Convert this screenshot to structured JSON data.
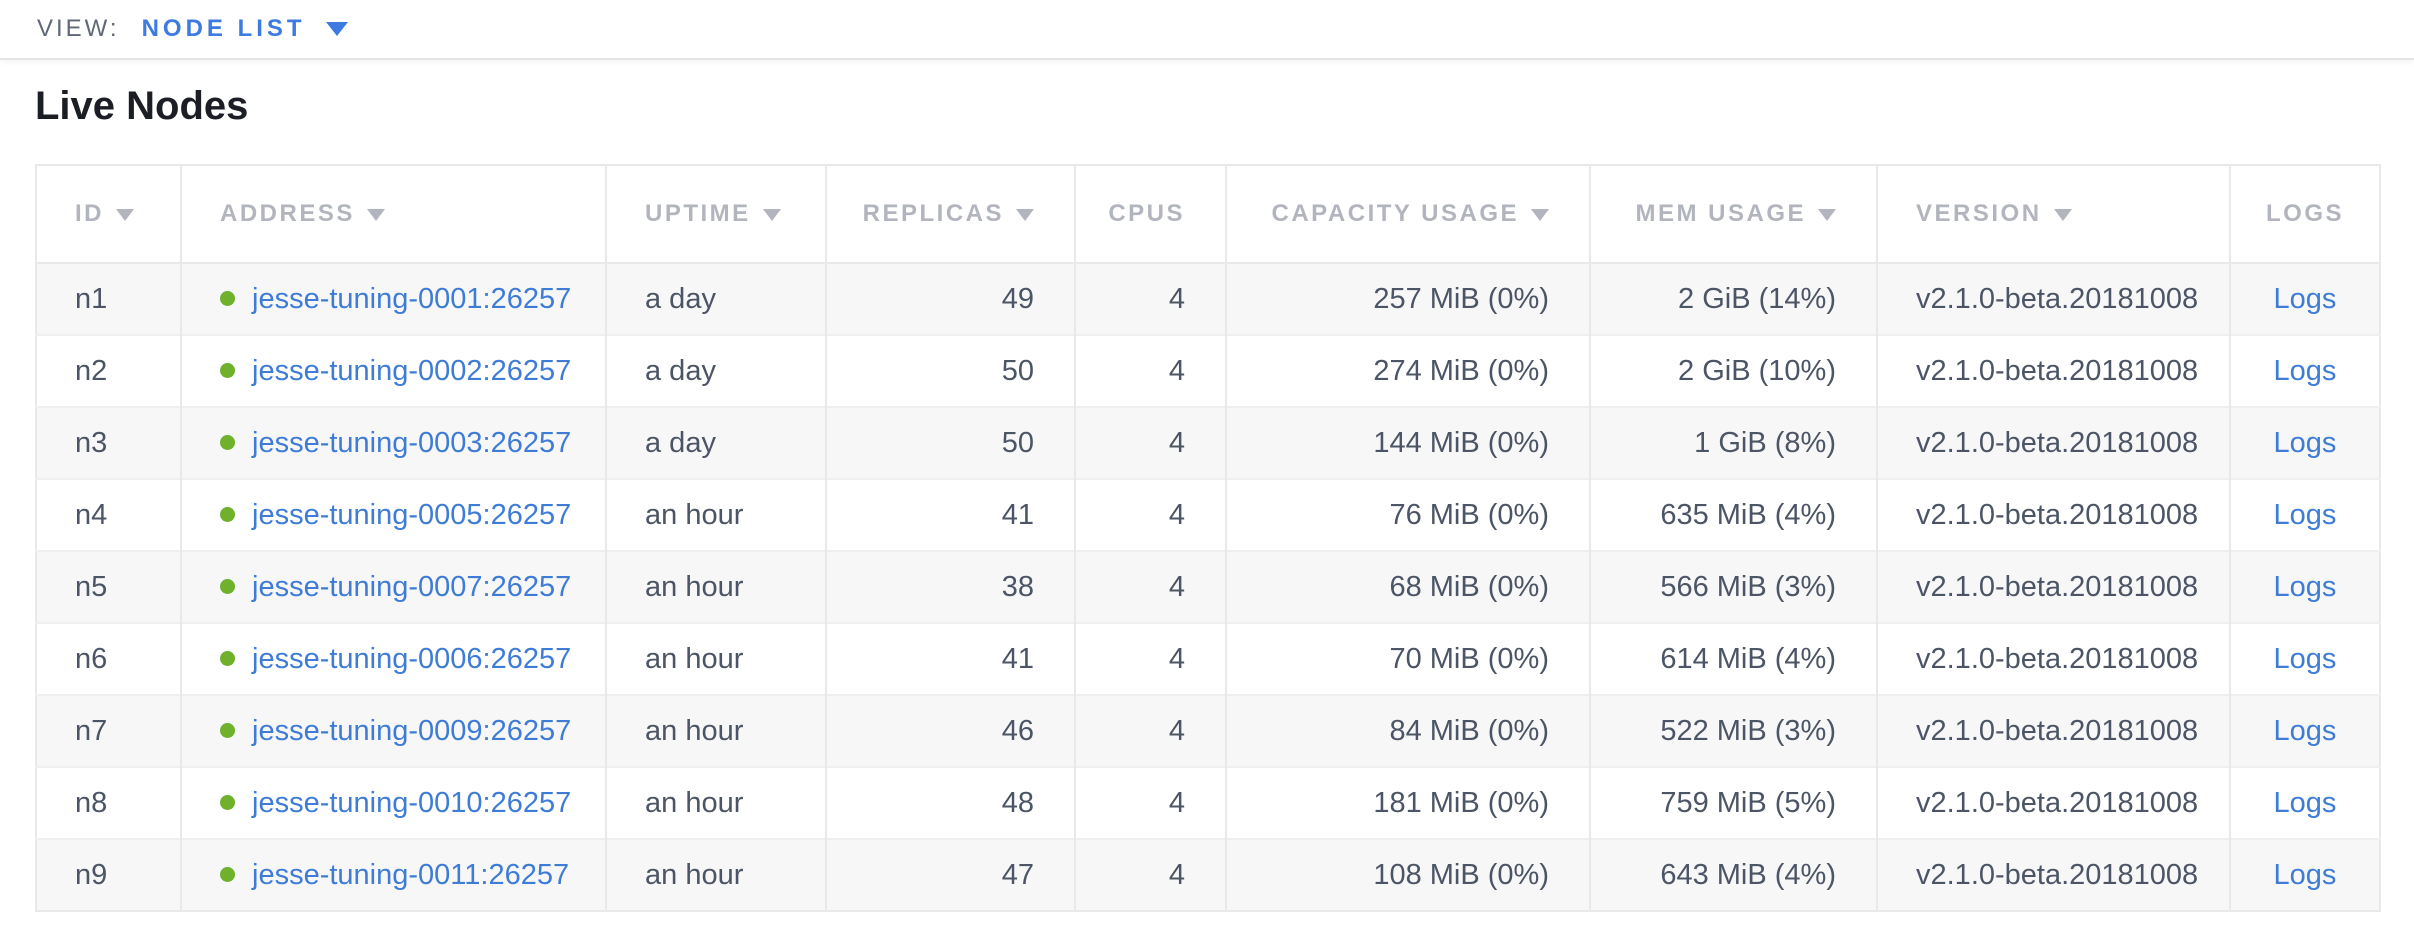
{
  "colors": {
    "accent-blue": "#3d7be0",
    "link-blue": "#3e7cd6",
    "live-green": "#6fb12c",
    "header-gray": "#b2b5bd",
    "text-dark": "#4c5566",
    "title-color": "#1b1e24",
    "view-label-gray": "#5f6778",
    "row-alt": "#f7f7f8",
    "border": "#e9e9e9"
  },
  "view_bar": {
    "label": "VIEW:",
    "selected": "NODE LIST"
  },
  "page": {
    "title": "Live Nodes"
  },
  "table": {
    "columns": [
      {
        "key": "id",
        "label": "ID",
        "sortable": true,
        "align": "left"
      },
      {
        "key": "address",
        "label": "ADDRESS",
        "sortable": true,
        "align": "left"
      },
      {
        "key": "uptime",
        "label": "UPTIME",
        "sortable": true,
        "align": "left"
      },
      {
        "key": "replicas",
        "label": "REPLICAS",
        "sortable": true,
        "align": "right"
      },
      {
        "key": "cpus",
        "label": "CPUS",
        "sortable": false,
        "align": "right"
      },
      {
        "key": "capacity",
        "label": "CAPACITY USAGE",
        "sortable": true,
        "align": "right"
      },
      {
        "key": "mem",
        "label": "MEM USAGE",
        "sortable": true,
        "align": "right"
      },
      {
        "key": "version",
        "label": "VERSION",
        "sortable": true,
        "align": "left"
      },
      {
        "key": "logs",
        "label": "LOGS",
        "sortable": false,
        "align": "center"
      }
    ],
    "rows": [
      {
        "id": "n1",
        "status": "live",
        "address": "jesse-tuning-0001:26257",
        "uptime": "a day",
        "replicas": "49",
        "cpus": "4",
        "capacity": "257 MiB (0%)",
        "mem": "2 GiB (14%)",
        "version": "v2.1.0-beta.20181008",
        "logs": "Logs"
      },
      {
        "id": "n2",
        "status": "live",
        "address": "jesse-tuning-0002:26257",
        "uptime": "a day",
        "replicas": "50",
        "cpus": "4",
        "capacity": "274 MiB (0%)",
        "mem": "2 GiB (10%)",
        "version": "v2.1.0-beta.20181008",
        "logs": "Logs"
      },
      {
        "id": "n3",
        "status": "live",
        "address": "jesse-tuning-0003:26257",
        "uptime": "a day",
        "replicas": "50",
        "cpus": "4",
        "capacity": "144 MiB (0%)",
        "mem": "1 GiB (8%)",
        "version": "v2.1.0-beta.20181008",
        "logs": "Logs"
      },
      {
        "id": "n4",
        "status": "live",
        "address": "jesse-tuning-0005:26257",
        "uptime": "an hour",
        "replicas": "41",
        "cpus": "4",
        "capacity": "76 MiB (0%)",
        "mem": "635 MiB (4%)",
        "version": "v2.1.0-beta.20181008",
        "logs": "Logs"
      },
      {
        "id": "n5",
        "status": "live",
        "address": "jesse-tuning-0007:26257",
        "uptime": "an hour",
        "replicas": "38",
        "cpus": "4",
        "capacity": "68 MiB (0%)",
        "mem": "566 MiB (3%)",
        "version": "v2.1.0-beta.20181008",
        "logs": "Logs"
      },
      {
        "id": "n6",
        "status": "live",
        "address": "jesse-tuning-0006:26257",
        "uptime": "an hour",
        "replicas": "41",
        "cpus": "4",
        "capacity": "70 MiB (0%)",
        "mem": "614 MiB (4%)",
        "version": "v2.1.0-beta.20181008",
        "logs": "Logs"
      },
      {
        "id": "n7",
        "status": "live",
        "address": "jesse-tuning-0009:26257",
        "uptime": "an hour",
        "replicas": "46",
        "cpus": "4",
        "capacity": "84 MiB (0%)",
        "mem": "522 MiB (3%)",
        "version": "v2.1.0-beta.20181008",
        "logs": "Logs"
      },
      {
        "id": "n8",
        "status": "live",
        "address": "jesse-tuning-0010:26257",
        "uptime": "an hour",
        "replicas": "48",
        "cpus": "4",
        "capacity": "181 MiB (0%)",
        "mem": "759 MiB (5%)",
        "version": "v2.1.0-beta.20181008",
        "logs": "Logs"
      },
      {
        "id": "n9",
        "status": "live",
        "address": "jesse-tuning-0011:26257",
        "uptime": "an hour",
        "replicas": "47",
        "cpus": "4",
        "capacity": "108 MiB (0%)",
        "mem": "643 MiB (4%)",
        "version": "v2.1.0-beta.20181008",
        "logs": "Logs"
      }
    ]
  }
}
